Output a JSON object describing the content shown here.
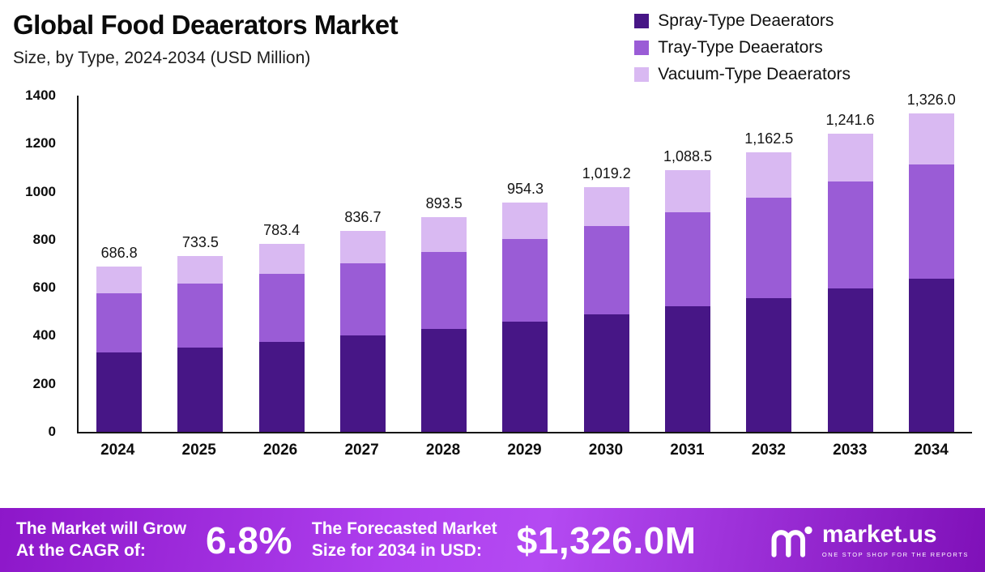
{
  "header": {
    "title": "Global Food Deaerators Market",
    "subtitle": "Size, by Type, 2024-2034 (USD Million)"
  },
  "legend": [
    {
      "label": "Spray-Type Deaerators",
      "color": "#471686"
    },
    {
      "label": "Tray-Type Deaerators",
      "color": "#9a5cd6"
    },
    {
      "label": "Vacuum-Type Deaerators",
      "color": "#d9b9f2"
    }
  ],
  "chart_data": {
    "type": "bar",
    "stacked": true,
    "title": "Global Food Deaerators Market Size, by Type, 2024-2034 (USD Million)",
    "xlabel": "",
    "ylabel": "",
    "ylim": [
      0,
      1400
    ],
    "yticks": [
      0,
      200,
      400,
      600,
      800,
      1000,
      1200,
      1400
    ],
    "grid": false,
    "legend_position": "top-right",
    "categories": [
      "2024",
      "2025",
      "2026",
      "2027",
      "2028",
      "2029",
      "2030",
      "2031",
      "2032",
      "2033",
      "2034"
    ],
    "series": [
      {
        "name": "Spray-Type Deaerators",
        "color": "#471686",
        "values": [
          329.7,
          352.1,
          376.0,
          401.6,
          428.9,
          458.1,
          489.2,
          522.5,
          558.0,
          596.0,
          636.5
        ]
      },
      {
        "name": "Tray-Type Deaerators",
        "color": "#9a5cd6",
        "values": [
          247.2,
          264.1,
          282.0,
          301.2,
          321.7,
          343.5,
          366.9,
          391.9,
          418.5,
          447.0,
          477.4
        ]
      },
      {
        "name": "Vacuum-Type Deaerators",
        "color": "#d9b9f2",
        "values": [
          109.9,
          117.3,
          125.4,
          133.9,
          142.9,
          152.7,
          163.1,
          174.1,
          186.0,
          198.6,
          212.1
        ]
      }
    ],
    "totals": [
      686.8,
      733.5,
      783.4,
      836.7,
      893.5,
      954.3,
      1019.2,
      1088.5,
      1162.5,
      1241.6,
      1326.0
    ],
    "total_labels": [
      "686.8",
      "733.5",
      "783.4",
      "836.7",
      "893.5",
      "954.3",
      "1,019.2",
      "1,088.5",
      "1,162.5",
      "1,241.6",
      "1,326.0"
    ]
  },
  "footer": {
    "cagr_label_line1": "The Market will Grow",
    "cagr_label_line2": "At the CAGR of:",
    "cagr_value": "6.8%",
    "forecast_label_line1": "The Forecasted Market",
    "forecast_label_line2": "Size for 2034 in USD:",
    "forecast_value": "$1,326.0M",
    "brand_name": "market.us",
    "brand_tagline": "ONE STOP SHOP FOR THE REPORTS"
  }
}
